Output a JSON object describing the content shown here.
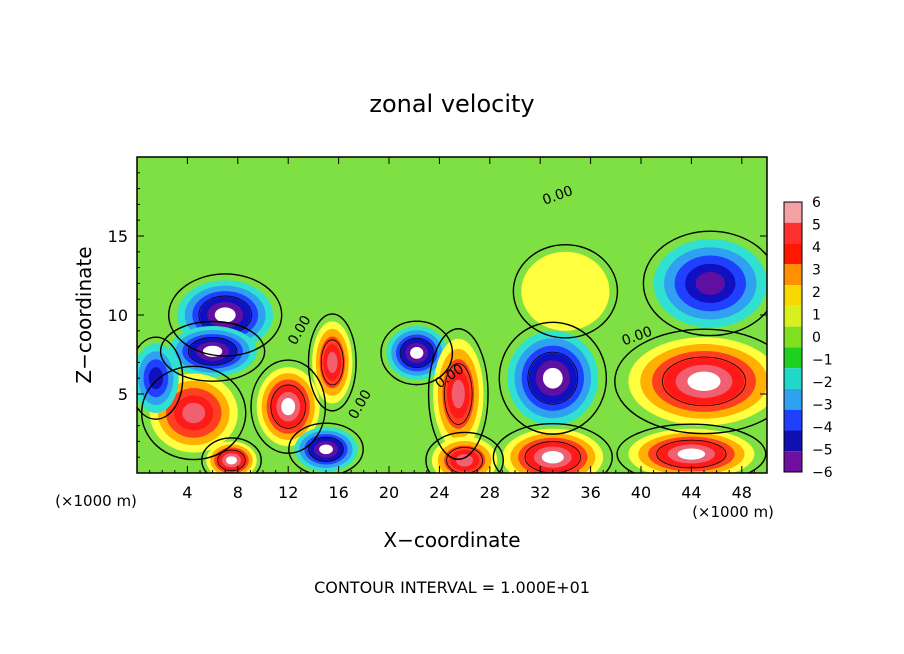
{
  "chart_data": {
    "type": "heatmap",
    "title": "zonal velocity",
    "xlabel": "X−coordinate",
    "ylabel": "Z−coordinate",
    "x_unit_left": "(×1000 m)",
    "x_unit_right": "(×1000 m)",
    "footer": "CONTOUR INTERVAL = 1.000E+01",
    "xlim": [
      0,
      50
    ],
    "ylim": [
      0,
      20
    ],
    "xticks": [
      4,
      8,
      12,
      16,
      20,
      24,
      28,
      32,
      36,
      40,
      44,
      48
    ],
    "yticks": [
      5,
      10,
      15
    ],
    "contour_labels": [
      {
        "text": "0.00",
        "x": 33.5,
        "y": 17.3,
        "angle": -20
      },
      {
        "text": "0.00",
        "x": 13.2,
        "y": 8.9,
        "angle": -60
      },
      {
        "text": "0.00",
        "x": 25.0,
        "y": 5.9,
        "angle": -35
      },
      {
        "text": "0.00",
        "x": 18.0,
        "y": 4.2,
        "angle": -60
      },
      {
        "text": "0.00",
        "x": 39.8,
        "y": 8.4,
        "angle": -20
      }
    ],
    "colorbar": {
      "levels": [
        6,
        5,
        4,
        3,
        2,
        1,
        0,
        -1,
        -2,
        -3,
        -4,
        -5,
        -6
      ],
      "labels": [
        "6",
        "5",
        "4",
        "3",
        "2",
        "1",
        "0",
        "−1",
        "−2",
        "−3",
        "−4",
        "−5",
        "−6"
      ],
      "colors": [
        "#f4a0a4",
        "#ff3030",
        "#ff1800",
        "#ff9000",
        "#f8d800",
        "#d8f020",
        "#80e020",
        "#20d020",
        "#20d8c8",
        "#30a0f0",
        "#2040ff",
        "#1010b0",
        "#7010a0"
      ]
    },
    "background_color": "#7ee043",
    "blobs": [
      {
        "type": "neg",
        "cx": 7.0,
        "cy": 10.0,
        "rx": 3.8,
        "ry": 2.2,
        "amp": -5.5
      },
      {
        "type": "neg",
        "cx": 6.0,
        "cy": 7.7,
        "rx": 3.5,
        "ry": 1.6,
        "amp": -5.5
      },
      {
        "type": "pos",
        "cx": 4.5,
        "cy": 3.8,
        "rx": 3.5,
        "ry": 2.5,
        "amp": 4.5
      },
      {
        "type": "pos",
        "cx": 12.0,
        "cy": 4.2,
        "rx": 2.5,
        "ry": 2.5,
        "amp": 5.5
      },
      {
        "type": "pos",
        "cx": 15.5,
        "cy": 7.0,
        "rx": 1.6,
        "ry": 2.6,
        "amp": 5.0
      },
      {
        "type": "neg",
        "cx": 22.2,
        "cy": 7.6,
        "rx": 2.4,
        "ry": 1.7,
        "amp": -6.0
      },
      {
        "type": "pos",
        "cx": 25.5,
        "cy": 5.0,
        "rx": 2.0,
        "ry": 3.5,
        "amp": 5.0
      },
      {
        "type": "neg",
        "cx": 33.0,
        "cy": 6.0,
        "rx": 3.6,
        "ry": 3.0,
        "amp": -6.5
      },
      {
        "type": "pos",
        "cx": 45.0,
        "cy": 5.8,
        "rx": 6.0,
        "ry": 2.8,
        "amp": 6.5
      },
      {
        "type": "pos",
        "cx": 33.0,
        "cy": 1.0,
        "rx": 4.0,
        "ry": 1.8,
        "amp": 6.0
      },
      {
        "type": "pos",
        "cx": 44.0,
        "cy": 1.2,
        "rx": 5.0,
        "ry": 1.6,
        "amp": 6.0
      },
      {
        "type": "pos",
        "cx": 26.0,
        "cy": 0.8,
        "rx": 2.6,
        "ry": 1.5,
        "amp": 5.0
      },
      {
        "type": "neg",
        "cx": 15.0,
        "cy": 1.5,
        "rx": 2.5,
        "ry": 1.4,
        "amp": -5.5
      },
      {
        "type": "pos",
        "cx": 7.5,
        "cy": 0.8,
        "rx": 2.0,
        "ry": 1.2,
        "amp": 6.0
      },
      {
        "type": "neg",
        "cx": 45.5,
        "cy": 12.0,
        "rx": 4.5,
        "ry": 2.8,
        "amp": -4.5
      },
      {
        "type": "neg",
        "cx": 1.5,
        "cy": 6.0,
        "rx": 1.8,
        "ry": 2.2,
        "amp": -4.0
      },
      {
        "type": "pos",
        "cx": 34.0,
        "cy": 11.5,
        "rx": 3.5,
        "ry": 2.5,
        "amp": 1.2
      }
    ]
  }
}
